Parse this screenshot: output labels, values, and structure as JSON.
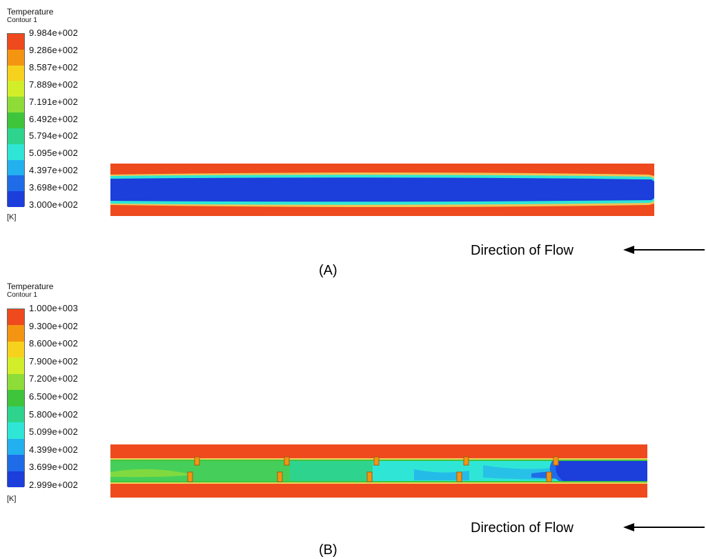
{
  "panel_a": {
    "legend_title": "Temperature",
    "legend_subtitle": "Contour 1",
    "ticks": [
      "9.984e+002",
      "9.286e+002",
      "8.587e+002",
      "7.889e+002",
      "7.191e+002",
      "6.492e+002",
      "5.794e+002",
      "5.095e+002",
      "4.397e+002",
      "3.698e+002",
      "3.000e+002"
    ],
    "unit": "[K]",
    "flow_label": "Direction of Flow",
    "panel_label": "(A)"
  },
  "panel_b": {
    "legend_title": "Temperature",
    "legend_subtitle": "Contour 1",
    "ticks": [
      "1.000e+003",
      "9.300e+002",
      "8.600e+002",
      "7.900e+002",
      "7.200e+002",
      "6.500e+002",
      "5.800e+002",
      "5.099e+002",
      "4.399e+002",
      "3.699e+002",
      "2.999e+002"
    ],
    "unit": "[K]",
    "flow_label": "Direction of Flow",
    "panel_label": "(B)"
  },
  "colormap": [
    "#ee4a1e",
    "#f49512",
    "#f6d11e",
    "#d2ee2a",
    "#8edc38",
    "#3ec53c",
    "#2ed48e",
    "#2fe6d6",
    "#23b0ee",
    "#1f6ce8",
    "#1c3edb"
  ]
}
